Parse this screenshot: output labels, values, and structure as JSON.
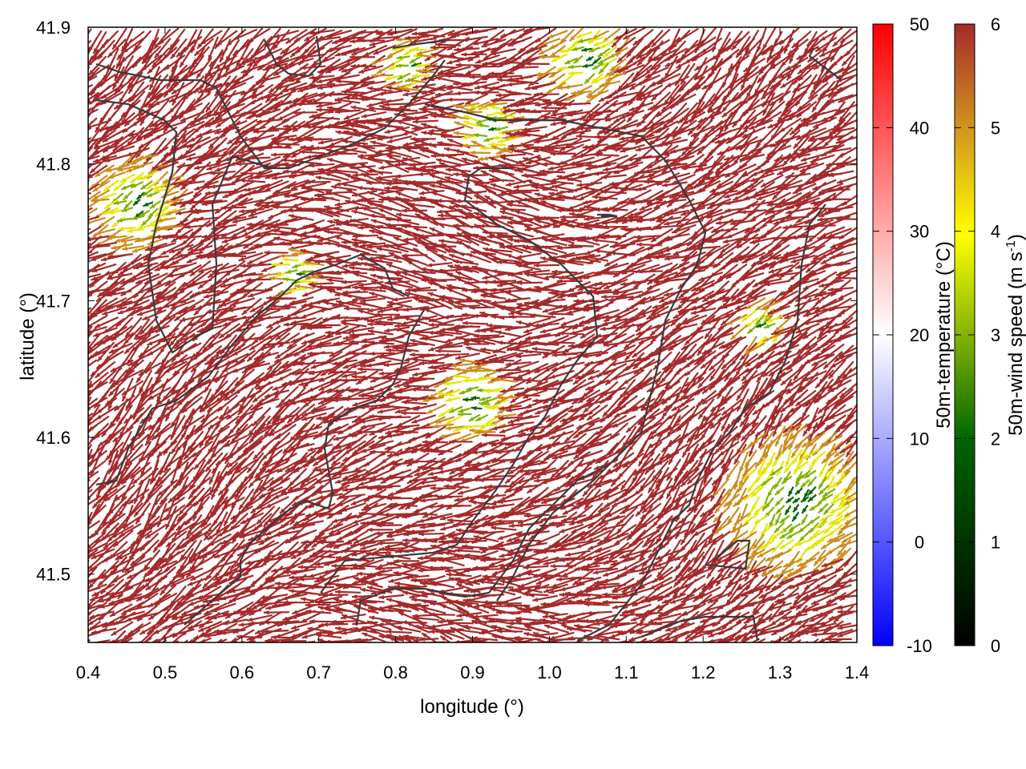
{
  "chart_data": {
    "type": "vector-field",
    "xlabel": "longitude (°)",
    "ylabel": "latitude (°)",
    "xlim": [
      0.4,
      1.4
    ],
    "ylim": [
      41.45,
      41.9
    ],
    "x_ticks": [
      "0.4",
      "0.5",
      "0.6",
      "0.7",
      "0.8",
      "0.9",
      "1.0",
      "1.1",
      "1.2",
      "1.3",
      "1.4"
    ],
    "y_ticks": [
      "41.5",
      "41.6",
      "41.7",
      "41.8",
      "41.9"
    ],
    "colorbars": [
      {
        "label": "50m-temperature (°C)",
        "range": [
          -10,
          50
        ],
        "ticks": [
          "-10",
          "0",
          "10",
          "20",
          "30",
          "40",
          "50"
        ],
        "colors": [
          "#0000ff",
          "#ffffff",
          "#ff0000"
        ]
      },
      {
        "label_main": "50m-wind speed (m s",
        "label_sup": "-1",
        "label_end": ")",
        "range": [
          0,
          6
        ],
        "ticks": [
          "0",
          "1",
          "2",
          "3",
          "4",
          "5",
          "6"
        ],
        "colors": [
          "#000000",
          "#006400",
          "#ffff00",
          "#d2961e",
          "#a52a2a"
        ]
      }
    ],
    "arrow_colors": {
      "strong": "#a52a2a",
      "medium": "#cd8c1e",
      "yellow": "#e6e600",
      "green": "#7fb200",
      "dark_green": "#006400"
    }
  }
}
